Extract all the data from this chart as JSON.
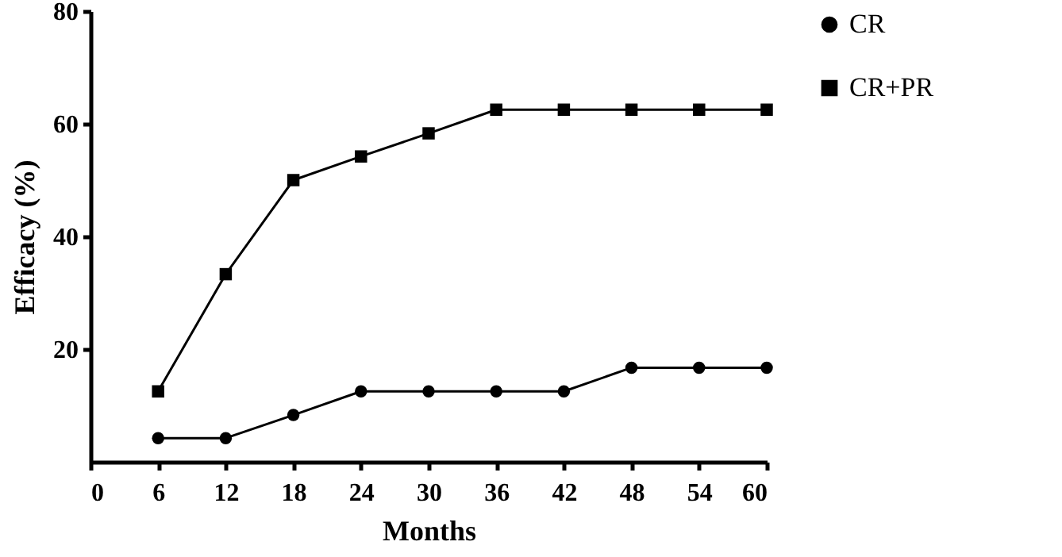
{
  "chart_data": {
    "type": "line",
    "xlabel": "Months",
    "ylabel": "Efficacy (%)",
    "x": [
      6,
      12,
      18,
      24,
      30,
      36,
      42,
      48,
      54,
      60
    ],
    "series": [
      {
        "name": "CR",
        "color": "#000000",
        "marker": "circle",
        "values": [
          4.2,
          4.2,
          8.3,
          12.5,
          12.5,
          12.5,
          12.5,
          16.7,
          16.7,
          16.7
        ]
      },
      {
        "name": "CR+PR",
        "color": "#000000",
        "marker": "square",
        "values": [
          12.5,
          33.3,
          50,
          54.2,
          58.3,
          62.5,
          62.5,
          62.5,
          62.5,
          62.5
        ]
      }
    ],
    "xlim": [
      0,
      60
    ],
    "xticks": [
      0,
      6,
      12,
      18,
      24,
      30,
      36,
      42,
      48,
      54,
      60
    ],
    "ylim": [
      0,
      80
    ],
    "yticks": [
      20,
      40,
      60,
      80
    ],
    "grid": false,
    "legend": "top right",
    "line_style": "solid"
  }
}
